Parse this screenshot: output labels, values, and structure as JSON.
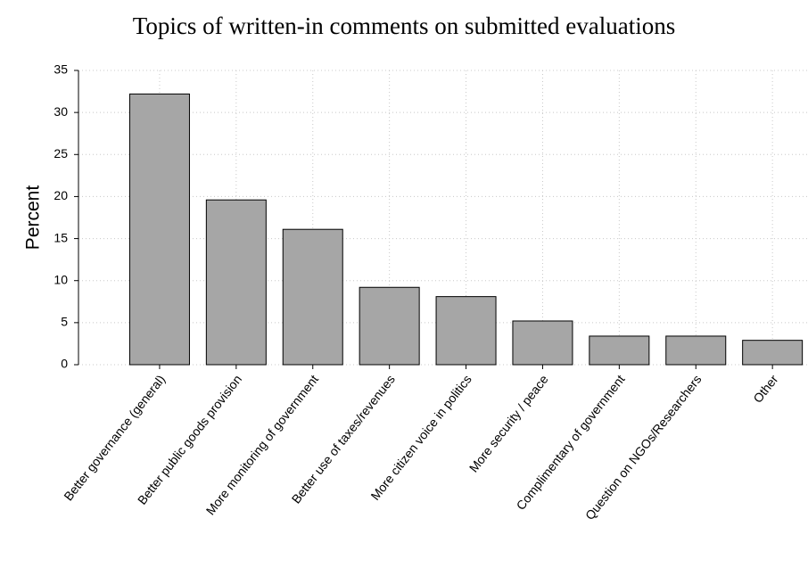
{
  "chart_data": {
    "type": "bar",
    "title": "Topics of written-in comments on submitted evaluations",
    "y_label": "Percent",
    "categories": [
      "Better governance (general)",
      "Better public goods provision",
      "More monitoring of government",
      "Better use of taxes/revenues",
      "More citizen voice in politics",
      "More security / peace",
      "Complimentary of government",
      "Question on NGOs/Researchers",
      "Other"
    ],
    "values": [
      32.2,
      19.6,
      16.1,
      9.2,
      8.1,
      5.2,
      3.4,
      3.4,
      2.9
    ],
    "color": "#a6a6a6",
    "ylim": [
      0,
      35
    ],
    "yticks": [
      0,
      5,
      10,
      15,
      20,
      25,
      30,
      35
    ],
    "grid": true
  }
}
